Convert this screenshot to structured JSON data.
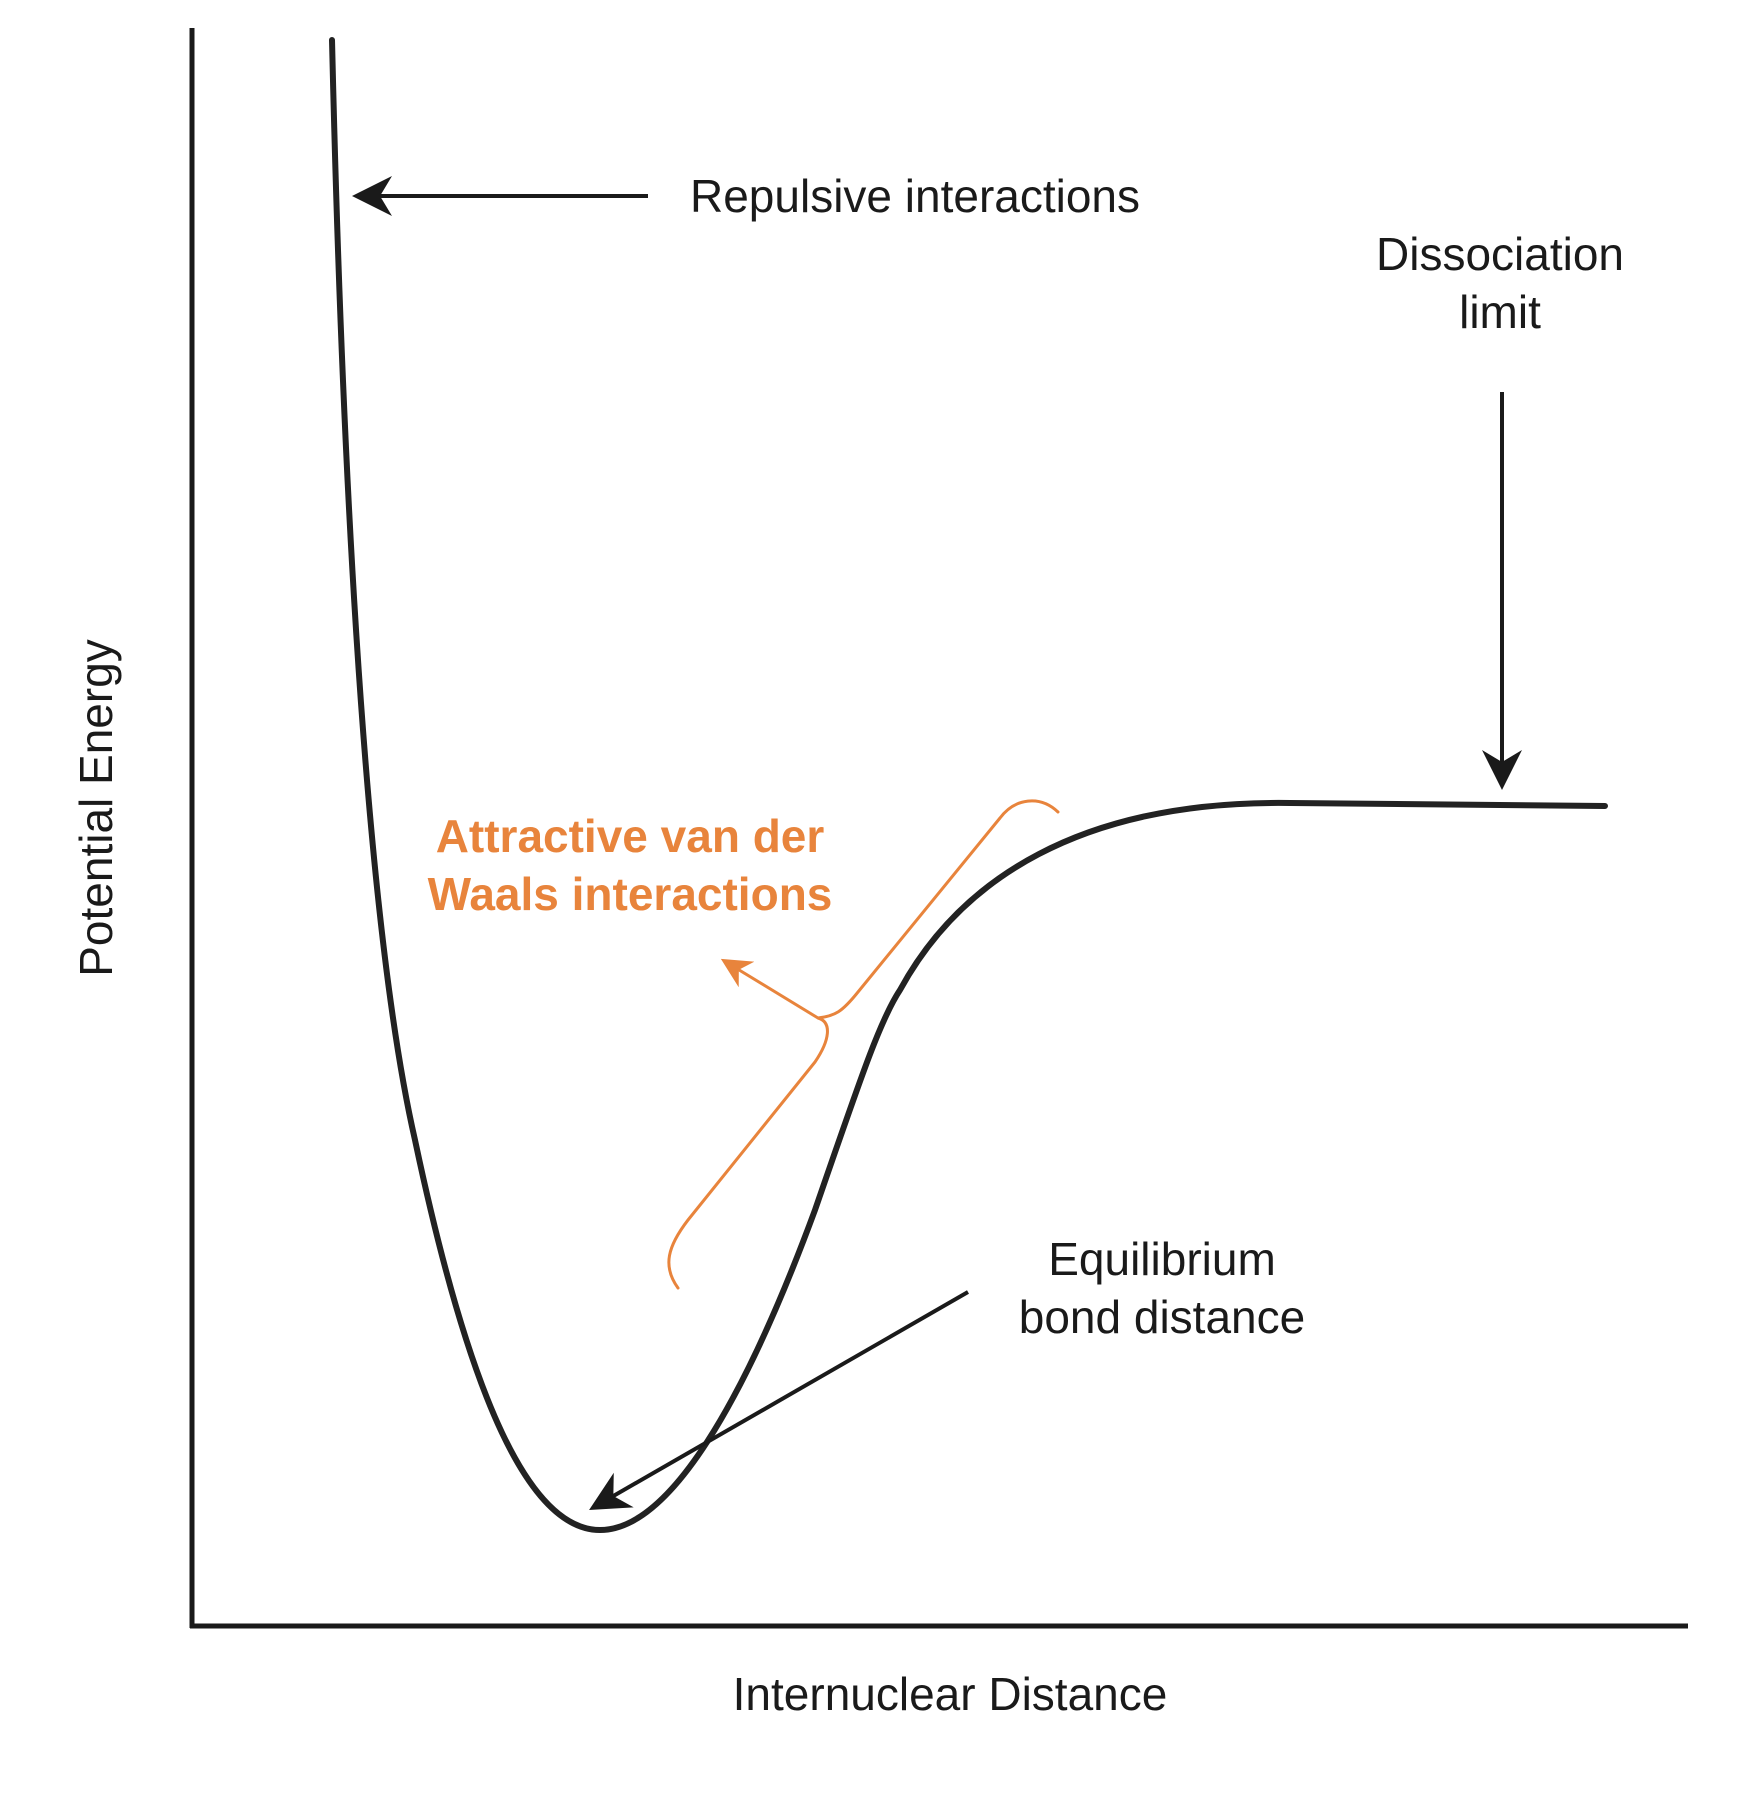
{
  "axes": {
    "x_label": "Internuclear Distance",
    "y_label": "Potential Energy"
  },
  "annotations": {
    "repulsive": "Repulsive interactions",
    "dissociation_line1": "Dissociation",
    "dissociation_line2": "limit",
    "attractive_line1": "Attractive van der",
    "attractive_line2": "Waals interactions",
    "equilibrium_line1": "Equilibrium",
    "equilibrium_line2": "bond distance"
  },
  "colors": {
    "curve": "#222222",
    "axis": "#1a1a1a",
    "accent": "#e8843c"
  }
}
